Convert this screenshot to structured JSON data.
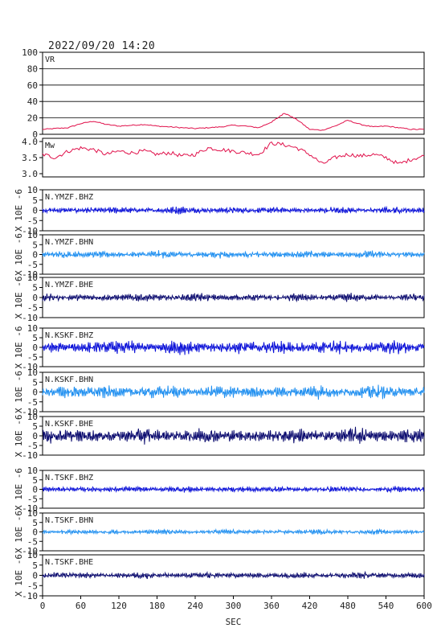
{
  "header": {
    "datetime": "2022/09/20 14:20"
  },
  "chart_data": [
    {
      "type": "line",
      "label": "VR",
      "ylim": [
        0,
        100
      ],
      "yticks": [
        0,
        20,
        40,
        60,
        80,
        100
      ],
      "grid": true,
      "color": "#e0104a",
      "x": [
        0,
        20,
        40,
        60,
        80,
        100,
        120,
        140,
        160,
        180,
        200,
        220,
        240,
        260,
        280,
        300,
        320,
        340,
        360,
        370,
        380,
        390,
        400,
        420,
        440,
        460,
        480,
        500,
        520,
        540,
        560,
        580,
        600
      ],
      "values": [
        6,
        7,
        8,
        13,
        16,
        12,
        10,
        11,
        12,
        10,
        9,
        8,
        7,
        8,
        9,
        11,
        10,
        8,
        15,
        20,
        26,
        22,
        18,
        6,
        5,
        10,
        17,
        12,
        9,
        10,
        8,
        6,
        6
      ]
    },
    {
      "type": "line",
      "label": "Mw",
      "ylim": [
        2.9,
        4.1
      ],
      "yticks": [
        3.0,
        3.5,
        4.0
      ],
      "ytick_labels": [
        "3.0",
        "3.5",
        "4.0"
      ],
      "grid": false,
      "color": "#e0104a",
      "x": [
        0,
        20,
        40,
        60,
        80,
        100,
        120,
        140,
        160,
        180,
        200,
        220,
        240,
        260,
        280,
        300,
        320,
        340,
        360,
        380,
        400,
        420,
        440,
        460,
        480,
        500,
        520,
        540,
        560,
        580,
        600
      ],
      "values": [
        3.6,
        3.5,
        3.7,
        3.8,
        3.75,
        3.6,
        3.7,
        3.65,
        3.7,
        3.6,
        3.65,
        3.55,
        3.6,
        3.8,
        3.75,
        3.7,
        3.65,
        3.6,
        3.95,
        3.9,
        3.8,
        3.6,
        3.3,
        3.5,
        3.6,
        3.55,
        3.6,
        3.5,
        3.3,
        3.45,
        3.55
      ]
    },
    {
      "type": "line",
      "label": "N.YMZF.BHZ",
      "ylim": [
        -10,
        10
      ],
      "yticks": [
        -10,
        -5,
        0,
        5,
        10
      ],
      "unit_label": "X 10E -6",
      "color": "#0a10d8",
      "amplitude": 1.7
    },
    {
      "type": "line",
      "label": "N.YMZF.BHN",
      "ylim": [
        -10,
        10
      ],
      "yticks": [
        -10,
        -5,
        0,
        5,
        10
      ],
      "unit_label": "X 10E -6",
      "color": "#1f8ff0",
      "amplitude": 1.9
    },
    {
      "type": "line",
      "label": "N.YMZF.BHE",
      "ylim": [
        -10,
        10
      ],
      "yticks": [
        -10,
        -5,
        0,
        5,
        10
      ],
      "unit_label": "X 10E -6",
      "color": "#0a0a6e",
      "amplitude": 2.0
    },
    {
      "type": "line",
      "label": "N.KSKF.BHZ",
      "ylim": [
        -10,
        10
      ],
      "yticks": [
        -10,
        -5,
        0,
        5,
        10
      ],
      "unit_label": "X 10E -6",
      "color": "#0a10d8",
      "amplitude": 3.8
    },
    {
      "type": "line",
      "label": "N.KSKF.BHN",
      "ylim": [
        -10,
        10
      ],
      "yticks": [
        -10,
        -5,
        0,
        5,
        10
      ],
      "unit_label": "X 10E -6",
      "color": "#1f8ff0",
      "amplitude": 3.5
    },
    {
      "type": "line",
      "label": "N.KSKF.BHE",
      "ylim": [
        -10,
        10
      ],
      "yticks": [
        -10,
        -5,
        0,
        5,
        10
      ],
      "unit_label": "X 10E -6",
      "color": "#0a0a6e",
      "amplitude": 4.0
    },
    {
      "type": "line",
      "label": "N.TSKF.BHZ",
      "ylim": [
        -10,
        10
      ],
      "yticks": [
        -10,
        -5,
        0,
        5,
        10
      ],
      "unit_label": "X 10E -6",
      "color": "#0a10d8",
      "amplitude": 1.6
    },
    {
      "type": "line",
      "label": "N.TSKF.BHN",
      "ylim": [
        -10,
        10
      ],
      "yticks": [
        -10,
        -5,
        0,
        5,
        10
      ],
      "unit_label": "X 10E -6",
      "color": "#1f8ff0",
      "amplitude": 1.3
    },
    {
      "type": "line",
      "label": "N.TSKF.BHE",
      "ylim": [
        -10,
        10
      ],
      "yticks": [
        -10,
        -5,
        0,
        5,
        10
      ],
      "unit_label": "X 10E -6",
      "color": "#0a0a6e",
      "amplitude": 1.6
    }
  ],
  "x_axis": {
    "label": "SEC",
    "xlim": [
      0,
      600
    ],
    "ticks": [
      0,
      60,
      120,
      180,
      240,
      300,
      360,
      420,
      480,
      540,
      600
    ]
  }
}
